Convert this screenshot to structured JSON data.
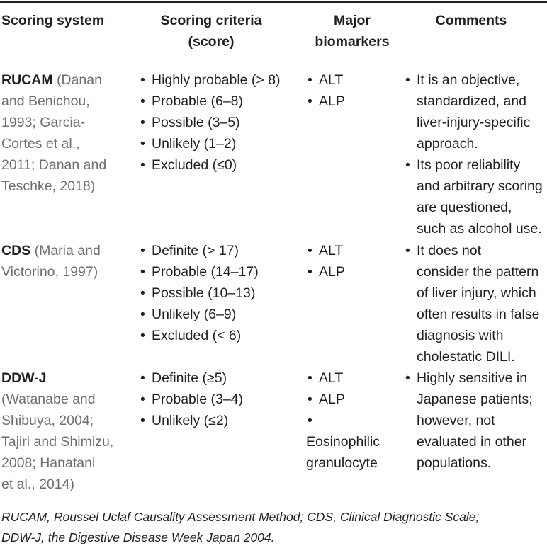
{
  "header": {
    "system": "Scoring system",
    "criteria_line1": "Scoring criteria",
    "criteria_line2": "(score)",
    "biomarkers_line1": "Major",
    "biomarkers_line2": "biomarkers",
    "comments": "Comments"
  },
  "rows": [
    {
      "system": "RUCAM",
      "ref_lines": [
        "(Danan",
        "and Benichou,",
        "1993; Garcia-",
        "Cortes et al.,",
        "2011; Danan and",
        "Teschke, 2018)"
      ],
      "criteria": [
        "Highly probable (> 8)",
        "Probable (6–8)",
        "Possible (3–5)",
        "Unlikely (1–2)",
        "Excluded (≤0)"
      ],
      "biomarkers": [
        "ALT",
        "ALP"
      ],
      "comments": [
        [
          "It is an objective,",
          "standardized, and",
          "liver-injury-specific",
          "approach."
        ],
        [
          "Its poor reliability",
          "and arbitrary scoring",
          "are questioned,",
          "such as alcohol use."
        ]
      ]
    },
    {
      "system": "CDS",
      "ref_lines": [
        "(Maria and",
        "Victorino, 1997)"
      ],
      "criteria": [
        "Definite (> 17)",
        "Probable (14–17)",
        "Possible (10–13)",
        "Unlikely (6–9)",
        "Excluded (< 6)"
      ],
      "biomarkers": [
        "ALT",
        "ALP"
      ],
      "comments": [
        [
          "It does not",
          "consider the pattern",
          "of liver injury, which",
          "often results in false",
          "diagnosis with",
          "cholestatic DILI."
        ]
      ]
    },
    {
      "system": "DDW-J",
      "ref_lines": [
        "(Watanabe and",
        "Shibuya, 2004;",
        "Tajiri and Shimizu,",
        "2008; Hanatani",
        "et al., 2014)"
      ],
      "criteria": [
        "Definite (≥5)",
        "Probable (3–4)",
        "Unlikely (≤2)"
      ],
      "biomarkers": [
        "ALT",
        "ALP"
      ],
      "biomarker_extra": [
        "Eosinophilic",
        "granulocyte"
      ],
      "comments": [
        [
          "Highly sensitive in",
          "Japanese patients;",
          "however, not",
          "evaluated in other",
          "populations."
        ]
      ]
    }
  ],
  "footnote_line1": "RUCAM, Roussel Uclaf Causality Assessment Method; CDS, Clinical Diagnostic Scale;",
  "footnote_line2": "DDW-J, the Digestive Disease Week Japan 2004."
}
